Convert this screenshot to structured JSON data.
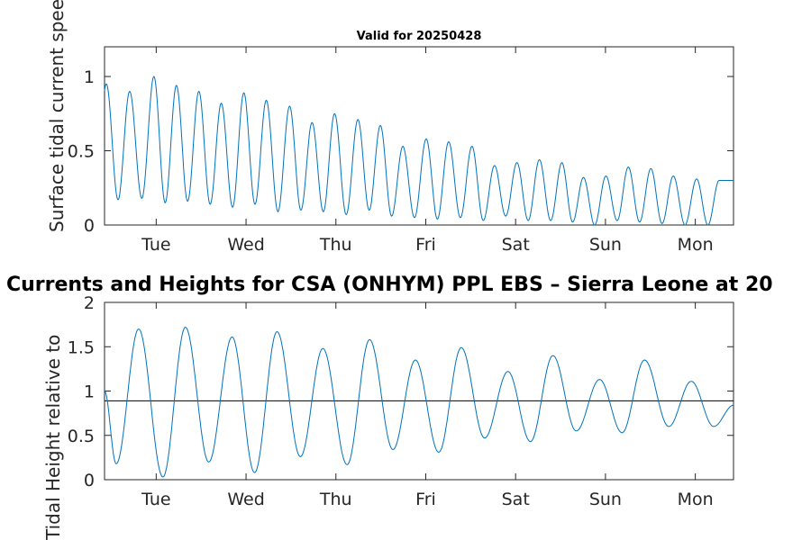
{
  "figure": {
    "main_title": "Currents and Heights for CSA (ONHYM) PPL EBS  – Sierra Leone at 20",
    "top_title": "Valid for 20250428"
  },
  "chart_data": [
    {
      "type": "line",
      "title": "Valid for 20250428",
      "ylabel": "Surface tidal current speed, kn",
      "xlabel": "",
      "x_ticks": [
        "Tue",
        "Wed",
        "Thu",
        "Fri",
        "Sat",
        "Sun",
        "Mon"
      ],
      "xlim_days": [
        0,
        7.0
      ],
      "ylim": [
        0,
        1.2
      ],
      "y_ticks": [
        "0",
        "0.5",
        "1"
      ],
      "y_tick_values": [
        0,
        0.5,
        1
      ],
      "color": "#0072bd",
      "grid": false,
      "series": [
        {
          "peaks": [
            0.95,
            0.9,
            1.0,
            0.94,
            0.9,
            0.82,
            0.89,
            0.84,
            0.8,
            0.69,
            0.75,
            0.71,
            0.67,
            0.53,
            0.58,
            0.56,
            0.53,
            0.4,
            0.42,
            0.44,
            0.42,
            0.32,
            0.33,
            0.39,
            0.38,
            0.33,
            0.31,
            0.3
          ],
          "troughs": [
            0.17,
            0.18,
            0.15,
            0.16,
            0.14,
            0.12,
            0.14,
            0.09,
            0.1,
            0.09,
            0.07,
            0.1,
            0.06,
            0.05,
            0.04,
            0.05,
            0.03,
            0.06,
            0.03,
            0.03,
            0.02,
            0.0,
            0.03,
            0.02,
            0.01,
            0.0,
            0.0,
            0.02
          ],
          "peak_days": [
            0.02,
            0.28,
            0.55,
            0.8,
            1.05,
            1.3,
            1.55,
            1.8,
            2.06,
            2.31,
            2.56,
            2.82,
            3.07,
            3.32,
            3.58,
            3.83,
            4.09,
            4.34,
            4.59,
            4.84,
            5.09,
            5.33,
            5.58,
            5.83,
            6.08,
            6.33,
            6.59,
            6.84
          ]
        }
      ]
    },
    {
      "type": "line",
      "title": "",
      "ylabel": "Tidal Height relative to",
      "xlabel": "",
      "x_ticks": [
        "Tue",
        "Wed",
        "Thu",
        "Fri",
        "Sat",
        "Sun",
        "Mon"
      ],
      "xlim_days": [
        0,
        7.0
      ],
      "ylim": [
        0,
        2
      ],
      "y_ticks": [
        "0",
        "0.5",
        "1",
        "1.5",
        "2"
      ],
      "y_tick_values": [
        0,
        0.5,
        1,
        1.5,
        2
      ],
      "reference_line": 0.89,
      "color": "#0072bd",
      "grid": false,
      "series": [
        {
          "start_value": 1.0,
          "end_value": 0.84,
          "extrema": [
            {
              "day": 0.13,
              "value": 0.18
            },
            {
              "day": 0.38,
              "value": 1.7
            },
            {
              "day": 0.65,
              "value": 0.03
            },
            {
              "day": 0.9,
              "value": 1.72
            },
            {
              "day": 1.16,
              "value": 0.2
            },
            {
              "day": 1.42,
              "value": 1.61
            },
            {
              "day": 1.67,
              "value": 0.08
            },
            {
              "day": 1.92,
              "value": 1.67
            },
            {
              "day": 2.18,
              "value": 0.26
            },
            {
              "day": 2.43,
              "value": 1.48
            },
            {
              "day": 2.7,
              "value": 0.17
            },
            {
              "day": 2.95,
              "value": 1.58
            },
            {
              "day": 3.21,
              "value": 0.34
            },
            {
              "day": 3.46,
              "value": 1.35
            },
            {
              "day": 3.72,
              "value": 0.31
            },
            {
              "day": 3.97,
              "value": 1.49
            },
            {
              "day": 4.23,
              "value": 0.47
            },
            {
              "day": 4.49,
              "value": 1.22
            },
            {
              "day": 4.74,
              "value": 0.43
            },
            {
              "day": 4.99,
              "value": 1.4
            },
            {
              "day": 5.25,
              "value": 0.55
            },
            {
              "day": 5.51,
              "value": 1.13
            },
            {
              "day": 5.76,
              "value": 0.53
            },
            {
              "day": 6.01,
              "value": 1.35
            },
            {
              "day": 6.28,
              "value": 0.6
            },
            {
              "day": 6.53,
              "value": 1.11
            },
            {
              "day": 6.78,
              "value": 0.6
            }
          ]
        }
      ]
    }
  ]
}
